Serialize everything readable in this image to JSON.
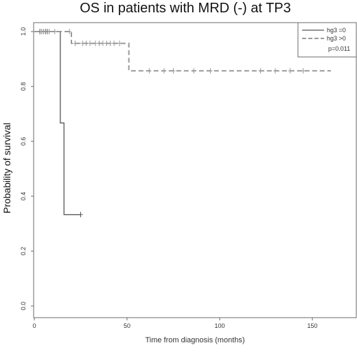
{
  "chart_data": {
    "type": "line",
    "title": "OS in patients with MRD (-) at TP3",
    "xlabel": "Time from diagnosis (months)",
    "ylabel": "Probability of survival",
    "xlim": [
      0,
      160
    ],
    "ylim": [
      0,
      1
    ],
    "x_ticks": [
      0,
      50,
      100,
      150
    ],
    "x_tick_labels": [
      "0",
      "50",
      "100",
      "150"
    ],
    "y_ticks": [
      0.0,
      0.2,
      0.4,
      0.6,
      0.8,
      1.0
    ],
    "y_tick_labels": [
      "0.0",
      "0.2",
      "0.4",
      "0.6",
      "0.8",
      "1.0"
    ],
    "grid": false,
    "legend_position": "top-right",
    "series": [
      {
        "name": "hg3 =0",
        "style": "solid",
        "color": "#555555",
        "steps": [
          [
            0,
            1.0
          ],
          [
            14,
            0.667
          ],
          [
            16,
            0.333
          ],
          [
            25,
            0.333
          ]
        ],
        "censored": [
          [
            3,
            1.0
          ],
          [
            4,
            1.0
          ],
          [
            5,
            1.0
          ],
          [
            6,
            1.0
          ],
          [
            7,
            1.0
          ],
          [
            25,
            0.333
          ]
        ]
      },
      {
        "name": "hg3 >0",
        "style": "dashed",
        "color": "#999999",
        "steps": [
          [
            0,
            1.0
          ],
          [
            20,
            0.957
          ],
          [
            51,
            0.857
          ],
          [
            160,
            0.857
          ]
        ],
        "censored": [
          [
            4,
            1.0
          ],
          [
            5,
            1.0
          ],
          [
            8,
            1.0
          ],
          [
            11,
            1.0
          ],
          [
            19,
            1.0
          ],
          [
            22,
            0.957
          ],
          [
            26,
            0.957
          ],
          [
            28,
            0.957
          ],
          [
            30,
            0.957
          ],
          [
            33,
            0.957
          ],
          [
            35,
            0.957
          ],
          [
            37,
            0.957
          ],
          [
            39,
            0.957
          ],
          [
            41,
            0.957
          ],
          [
            43,
            0.957
          ],
          [
            46,
            0.957
          ],
          [
            62,
            0.857
          ],
          [
            70,
            0.857
          ],
          [
            75,
            0.857
          ],
          [
            86,
            0.857
          ],
          [
            95,
            0.857
          ],
          [
            122,
            0.857
          ],
          [
            130,
            0.857
          ],
          [
            138,
            0.857
          ],
          [
            145,
            0.857
          ]
        ]
      }
    ],
    "annotation": "p=0.011"
  }
}
